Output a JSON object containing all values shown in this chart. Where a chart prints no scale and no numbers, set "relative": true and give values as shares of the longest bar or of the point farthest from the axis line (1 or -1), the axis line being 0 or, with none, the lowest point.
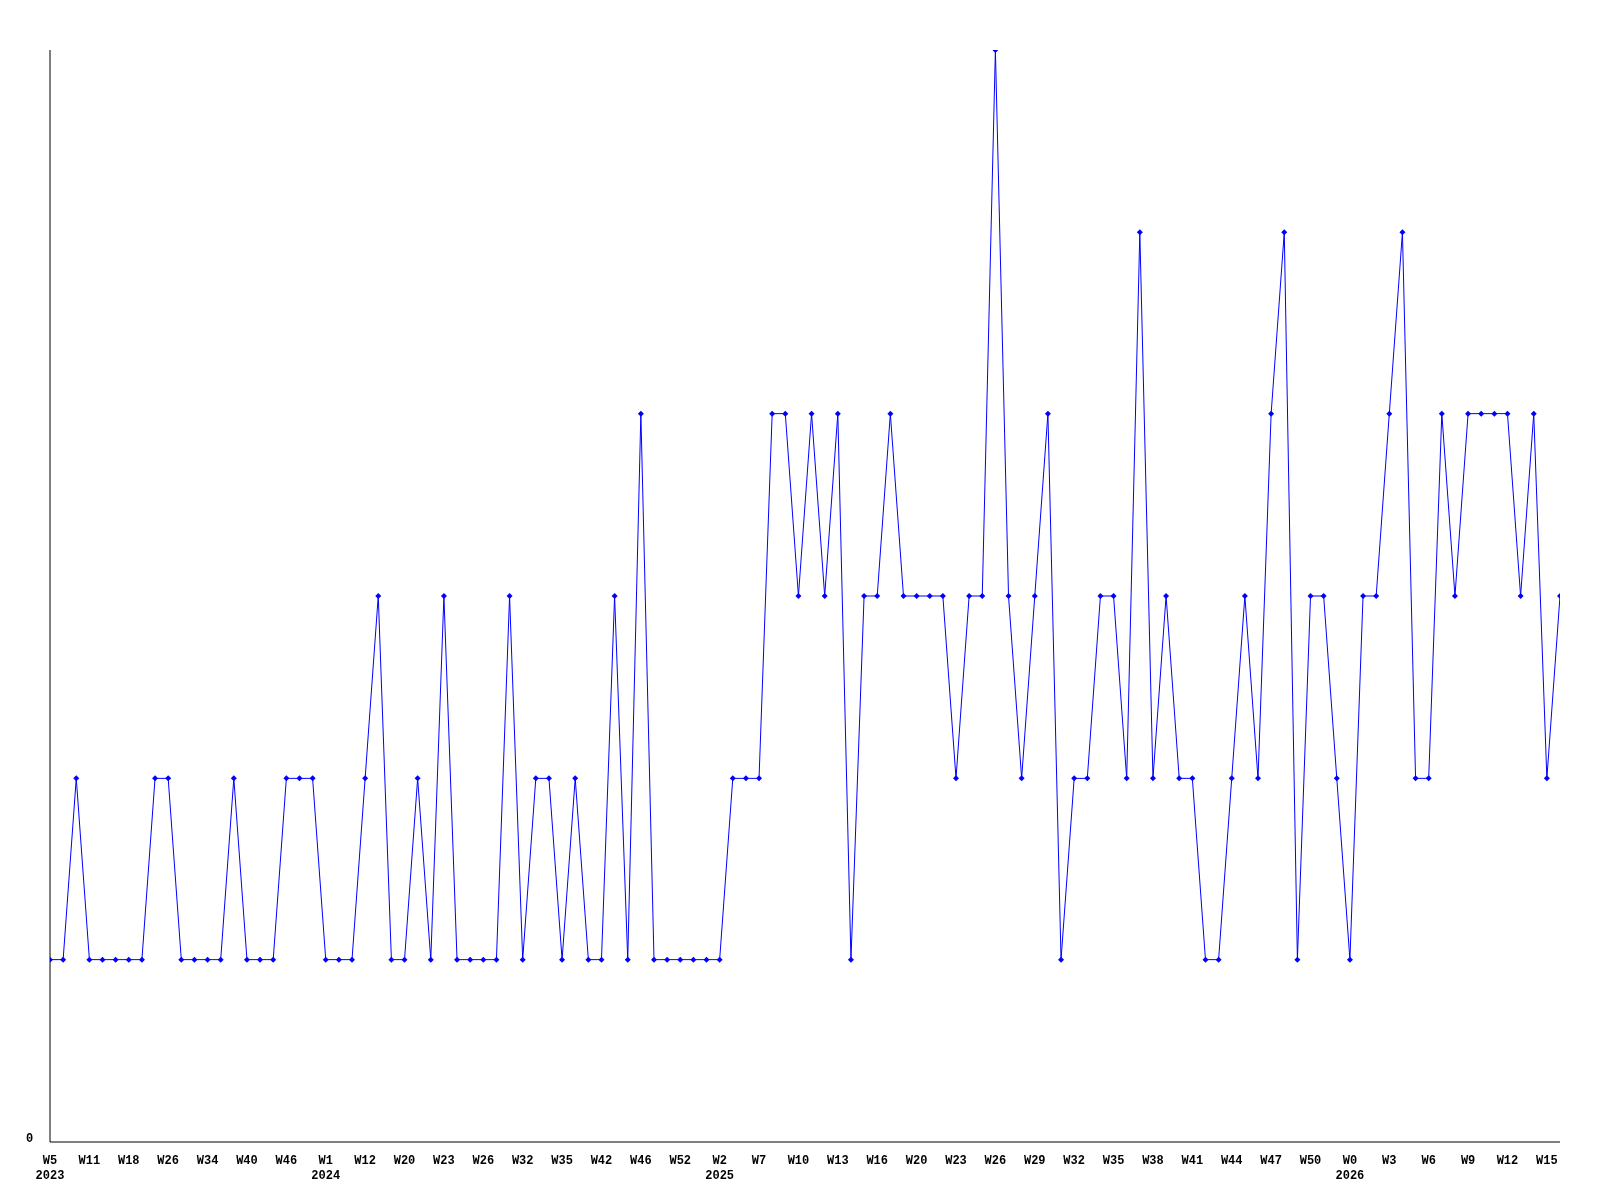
{
  "chart_data": {
    "type": "line",
    "relative": true,
    "annotations": [
      "0"
    ],
    "grid": false,
    "legend": false,
    "marker": "diamond",
    "line_style": "solid",
    "categories": [
      "W5\n2023",
      null,
      null,
      "W11",
      null,
      null,
      "W18",
      null,
      null,
      "W26",
      null,
      null,
      "W34",
      null,
      null,
      "W40",
      null,
      null,
      "W46",
      null,
      null,
      "W1\n2024",
      null,
      null,
      "W12",
      null,
      null,
      "W20",
      null,
      null,
      "W23",
      null,
      null,
      "W26",
      null,
      null,
      "W32",
      null,
      null,
      "W35",
      null,
      null,
      "W42",
      null,
      null,
      "W46",
      null,
      null,
      "W52",
      null,
      null,
      "W2\n2025",
      null,
      null,
      "W7",
      null,
      null,
      "W10",
      null,
      null,
      "W13",
      null,
      null,
      "W16",
      null,
      null,
      "W20",
      null,
      null,
      "W23",
      null,
      null,
      "W26",
      null,
      null,
      "W29",
      null,
      null,
      "W32",
      null,
      null,
      "W35",
      null,
      null,
      "W38",
      null,
      null,
      "W41",
      null,
      null,
      "W44",
      null,
      null,
      "W47",
      null,
      null,
      "W50",
      null,
      null,
      "W0\n2026",
      null,
      null,
      "W3",
      null,
      null,
      "W6",
      null,
      null,
      "W9",
      null,
      null,
      "W12",
      null,
      null,
      "W15",
      null
    ],
    "series": [
      {
        "color": "#0000ff",
        "values": [
          0.167,
          0.167,
          0.333,
          0.167,
          0.167,
          0.167,
          0.167,
          0.167,
          0.333,
          0.333,
          0.167,
          0.167,
          0.167,
          0.167,
          0.333,
          0.167,
          0.167,
          0.167,
          0.333,
          0.333,
          0.333,
          0.167,
          0.167,
          0.167,
          0.333,
          0.5,
          0.167,
          0.167,
          0.333,
          0.167,
          0.5,
          0.167,
          0.167,
          0.167,
          0.167,
          0.5,
          0.167,
          0.333,
          0.333,
          0.167,
          0.333,
          0.167,
          0.167,
          0.5,
          0.167,
          0.667,
          0.167,
          0.167,
          0.167,
          0.167,
          0.167,
          0.167,
          0.333,
          0.333,
          0.333,
          0.667,
          0.667,
          0.5,
          0.667,
          0.5,
          0.667,
          0.167,
          0.5,
          0.5,
          0.667,
          0.5,
          0.5,
          0.5,
          0.5,
          0.333,
          0.5,
          0.5,
          1,
          0.5,
          0.333,
          0.5,
          0.667,
          0.167,
          0.333,
          0.333,
          0.5,
          0.5,
          0.333,
          0.833,
          0.333,
          0.5,
          0.333,
          0.333,
          0.167,
          0.167,
          0.333,
          0.5,
          0.333,
          0.667,
          0.833,
          0.167,
          0.5,
          0.5,
          0.333,
          0.167,
          0.5,
          0.5,
          0.667,
          0.833,
          0.333,
          0.333,
          0.667,
          0.5,
          0.667,
          0.667,
          0.667,
          0.667,
          0.5,
          0.667,
          0.333,
          0.5
        ]
      }
    ]
  }
}
